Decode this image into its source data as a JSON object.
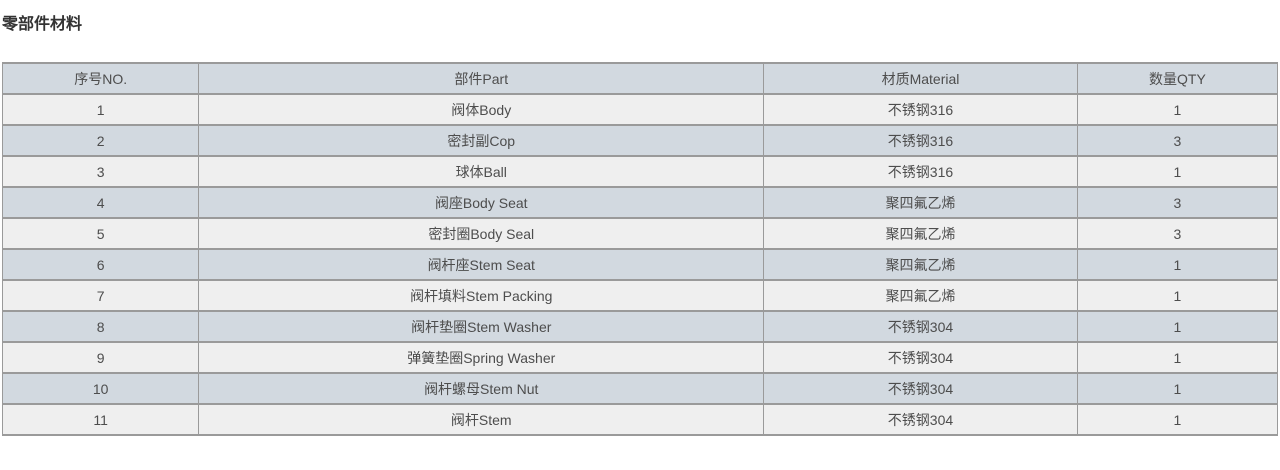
{
  "page": {
    "title": "零部件材料"
  },
  "colors": {
    "header_bg": "#d2d9e0",
    "row_alt_bg": "#d2d9e0",
    "row_bg": "#efefef",
    "border": "#9a9a9a",
    "cell_text": "#4d4d4d",
    "title_text": "#333333"
  },
  "table": {
    "headers": {
      "no": "序号NO.",
      "part": "部件Part",
      "material": "材质Material",
      "qty": "数量QTY"
    },
    "rows": [
      {
        "no": "1",
        "part": "阀体Body",
        "material": "不锈钢316",
        "qty": "1"
      },
      {
        "no": "2",
        "part": "密封副Cop",
        "material": "不锈钢316",
        "qty": "3"
      },
      {
        "no": "3",
        "part": "球体Ball",
        "material": "不锈钢316",
        "qty": "1"
      },
      {
        "no": "4",
        "part": "阀座Body Seat",
        "material": "聚四氟乙烯",
        "qty": "3"
      },
      {
        "no": "5",
        "part": "密封圈Body Seal",
        "material": "聚四氟乙烯",
        "qty": "3"
      },
      {
        "no": "6",
        "part": "阀杆座Stem Seat",
        "material": "聚四氟乙烯",
        "qty": "1"
      },
      {
        "no": "7",
        "part": "阀杆填料Stem Packing",
        "material": "聚四氟乙烯",
        "qty": "1"
      },
      {
        "no": "8",
        "part": "阀杆垫圈Stem Washer",
        "material": "不锈钢304",
        "qty": "1"
      },
      {
        "no": "9",
        "part": "弹簧垫圈Spring Washer",
        "material": "不锈钢304",
        "qty": "1"
      },
      {
        "no": "10",
        "part": "阀杆螺母Stem Nut",
        "material": "不锈钢304",
        "qty": "1"
      },
      {
        "no": "11",
        "part": "阀杆Stem",
        "material": "不锈钢304",
        "qty": "1"
      }
    ]
  }
}
